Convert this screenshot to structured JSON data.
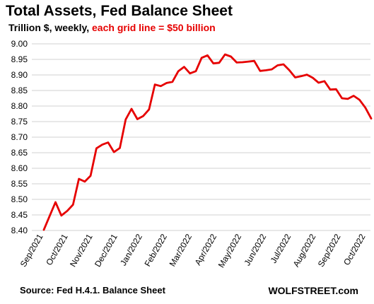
{
  "header": {
    "title": "Total Assets, Fed Balance Sheet",
    "subtitle_main": "Trillion $, weekly, ",
    "subtitle_accent": "each grid line = $50 billion"
  },
  "footer": {
    "source": "Source: Fed H.4.1. Balance Sheet",
    "brand": "WOLFSTREET.com"
  },
  "colors": {
    "line": "#e60000",
    "grid": "#d0d0d0",
    "accent_text": "#e60000"
  },
  "chart_data": {
    "type": "line",
    "title": "Total Assets, Fed Balance Sheet",
    "ylabel": "Trillion $, weekly, each grid line = $50 billion",
    "ylim": [
      8.4,
      9.0
    ],
    "yticks": [
      "8.40",
      "8.45",
      "8.50",
      "8.55",
      "8.60",
      "8.65",
      "8.70",
      "8.75",
      "8.80",
      "8.85",
      "8.90",
      "8.95",
      "9.00"
    ],
    "xticks": [
      "Sep/2021",
      "Oct/2021",
      "Nov/2021",
      "Dec/2021",
      "Jan/2022",
      "Feb/2022",
      "Mar/2022",
      "Apr/2022",
      "May/2022",
      "Jun/2022",
      "Jul/2022",
      "Aug/2022",
      "Sep/2022",
      "Oct/2022"
    ],
    "grid": true,
    "series": [
      {
        "values": [
          8.402,
          8.447,
          8.491,
          8.448,
          8.463,
          8.483,
          8.566,
          8.557,
          8.576,
          8.664,
          8.676,
          8.683,
          8.652,
          8.665,
          8.757,
          8.791,
          8.758,
          8.768,
          8.789,
          8.869,
          8.864,
          8.874,
          8.878,
          8.912,
          8.926,
          8.905,
          8.912,
          8.955,
          8.963,
          8.937,
          8.939,
          8.966,
          8.959,
          8.94,
          8.941,
          8.943,
          8.945,
          8.913,
          8.915,
          8.918,
          8.931,
          8.934,
          8.915,
          8.892,
          8.896,
          8.901,
          8.891,
          8.875,
          8.88,
          8.853,
          8.854,
          8.825,
          8.823,
          8.833,
          8.82,
          8.795,
          8.76
        ]
      }
    ]
  }
}
